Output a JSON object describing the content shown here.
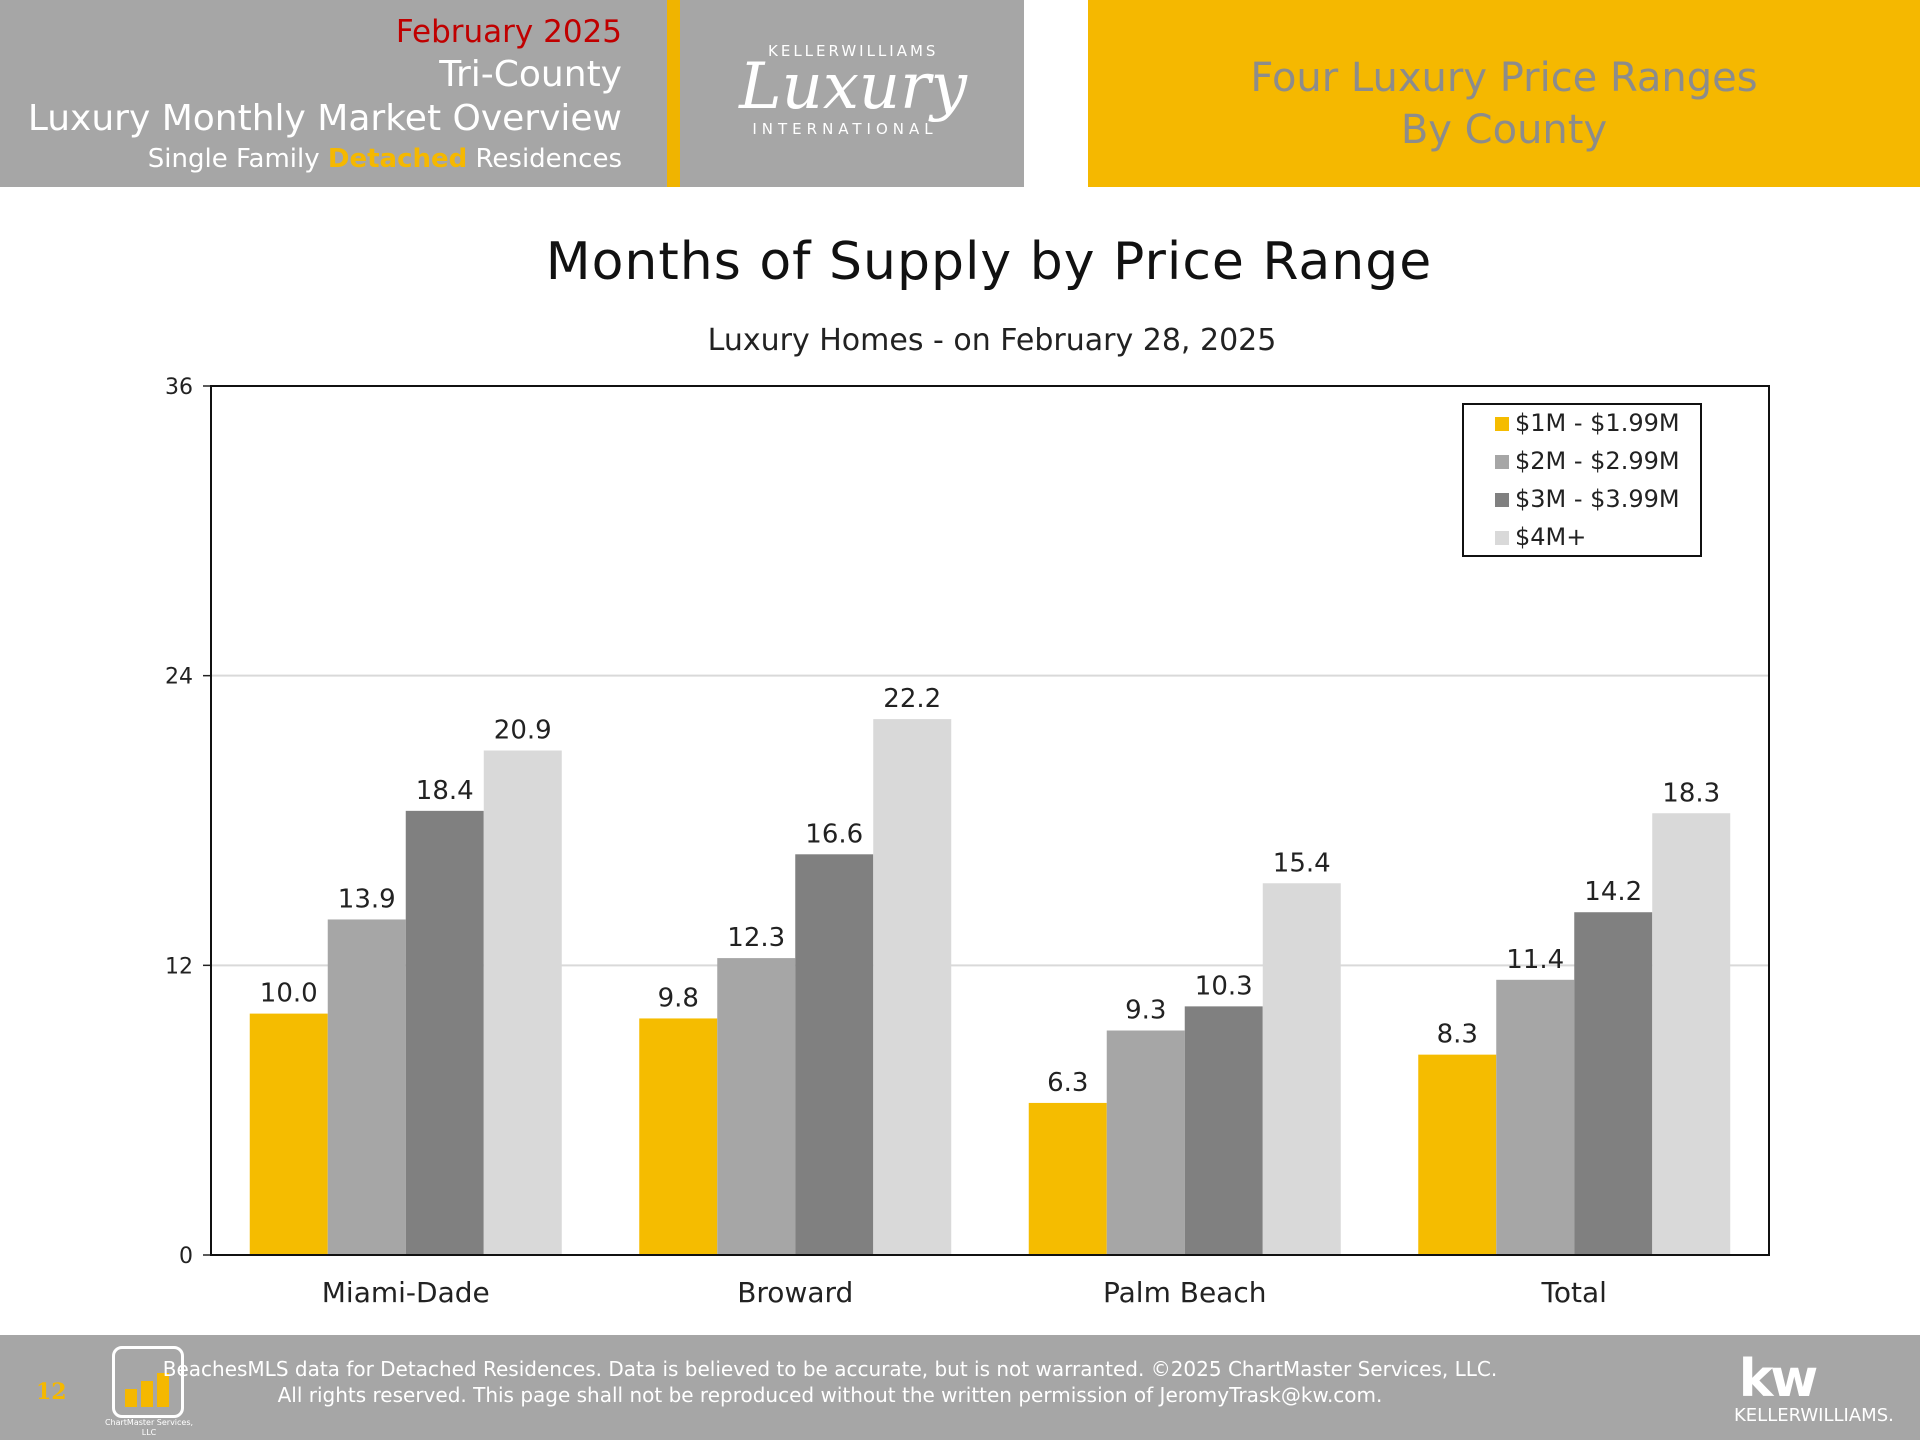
{
  "header": {
    "date": "February 2025",
    "region": "Tri-County",
    "title": "Luxury Monthly Market Overview",
    "subtitle_pre": "Single Family ",
    "subtitle_accent": "Detached",
    "subtitle_post": " Residences",
    "logo_brand": "KELLERWILLIAMS",
    "logo_script": "Luxury",
    "logo_intl": "INTERNATIONAL",
    "right_line1": "Four Luxury Price Ranges",
    "right_line2": "By County"
  },
  "colors": {
    "accent": "#f5b800",
    "header_gray": "#a6a6a6",
    "date_red": "#c00000",
    "series": [
      "#f5bc00",
      "#a6a6a6",
      "#808080",
      "#d9d9d9"
    ]
  },
  "chart_data": {
    "type": "bar",
    "title": "Months of Supply by Price Range",
    "subtitle": "Luxury Homes - on February 28, 2025",
    "xlabel": "",
    "ylabel": "",
    "categories": [
      "Miami-Dade",
      "Broward",
      "Palm Beach",
      "Total"
    ],
    "series": [
      {
        "name": "$1M - $1.99M",
        "values": [
          10.0,
          9.8,
          6.3,
          8.3
        ]
      },
      {
        "name": "$2M - $2.99M",
        "values": [
          13.9,
          12.3,
          9.3,
          11.4
        ]
      },
      {
        "name": "$3M - $3.99M",
        "values": [
          18.4,
          16.6,
          10.3,
          14.2
        ]
      },
      {
        "name": "$4M+",
        "values": [
          20.9,
          22.2,
          15.4,
          18.3
        ]
      }
    ],
    "ylim": [
      0,
      36
    ],
    "yticks": [
      0,
      12,
      24,
      36
    ],
    "grid": true,
    "legend_position": "top-right"
  },
  "footer": {
    "page_number": "12",
    "logo_label": "ChartMaster Services, LLC",
    "note_line1": "BeachesMLS data for Detached Residences.  Data is believed to be accurate, but is not warranted.   ©2025  ChartMaster Services, LLC.",
    "note_line2": "All rights reserved. This page shall not be reproduced without the written permission of JeromyTrask@kw.com.",
    "kw_mark": "kw",
    "kw_word": "KELLERWILLIAMS."
  }
}
